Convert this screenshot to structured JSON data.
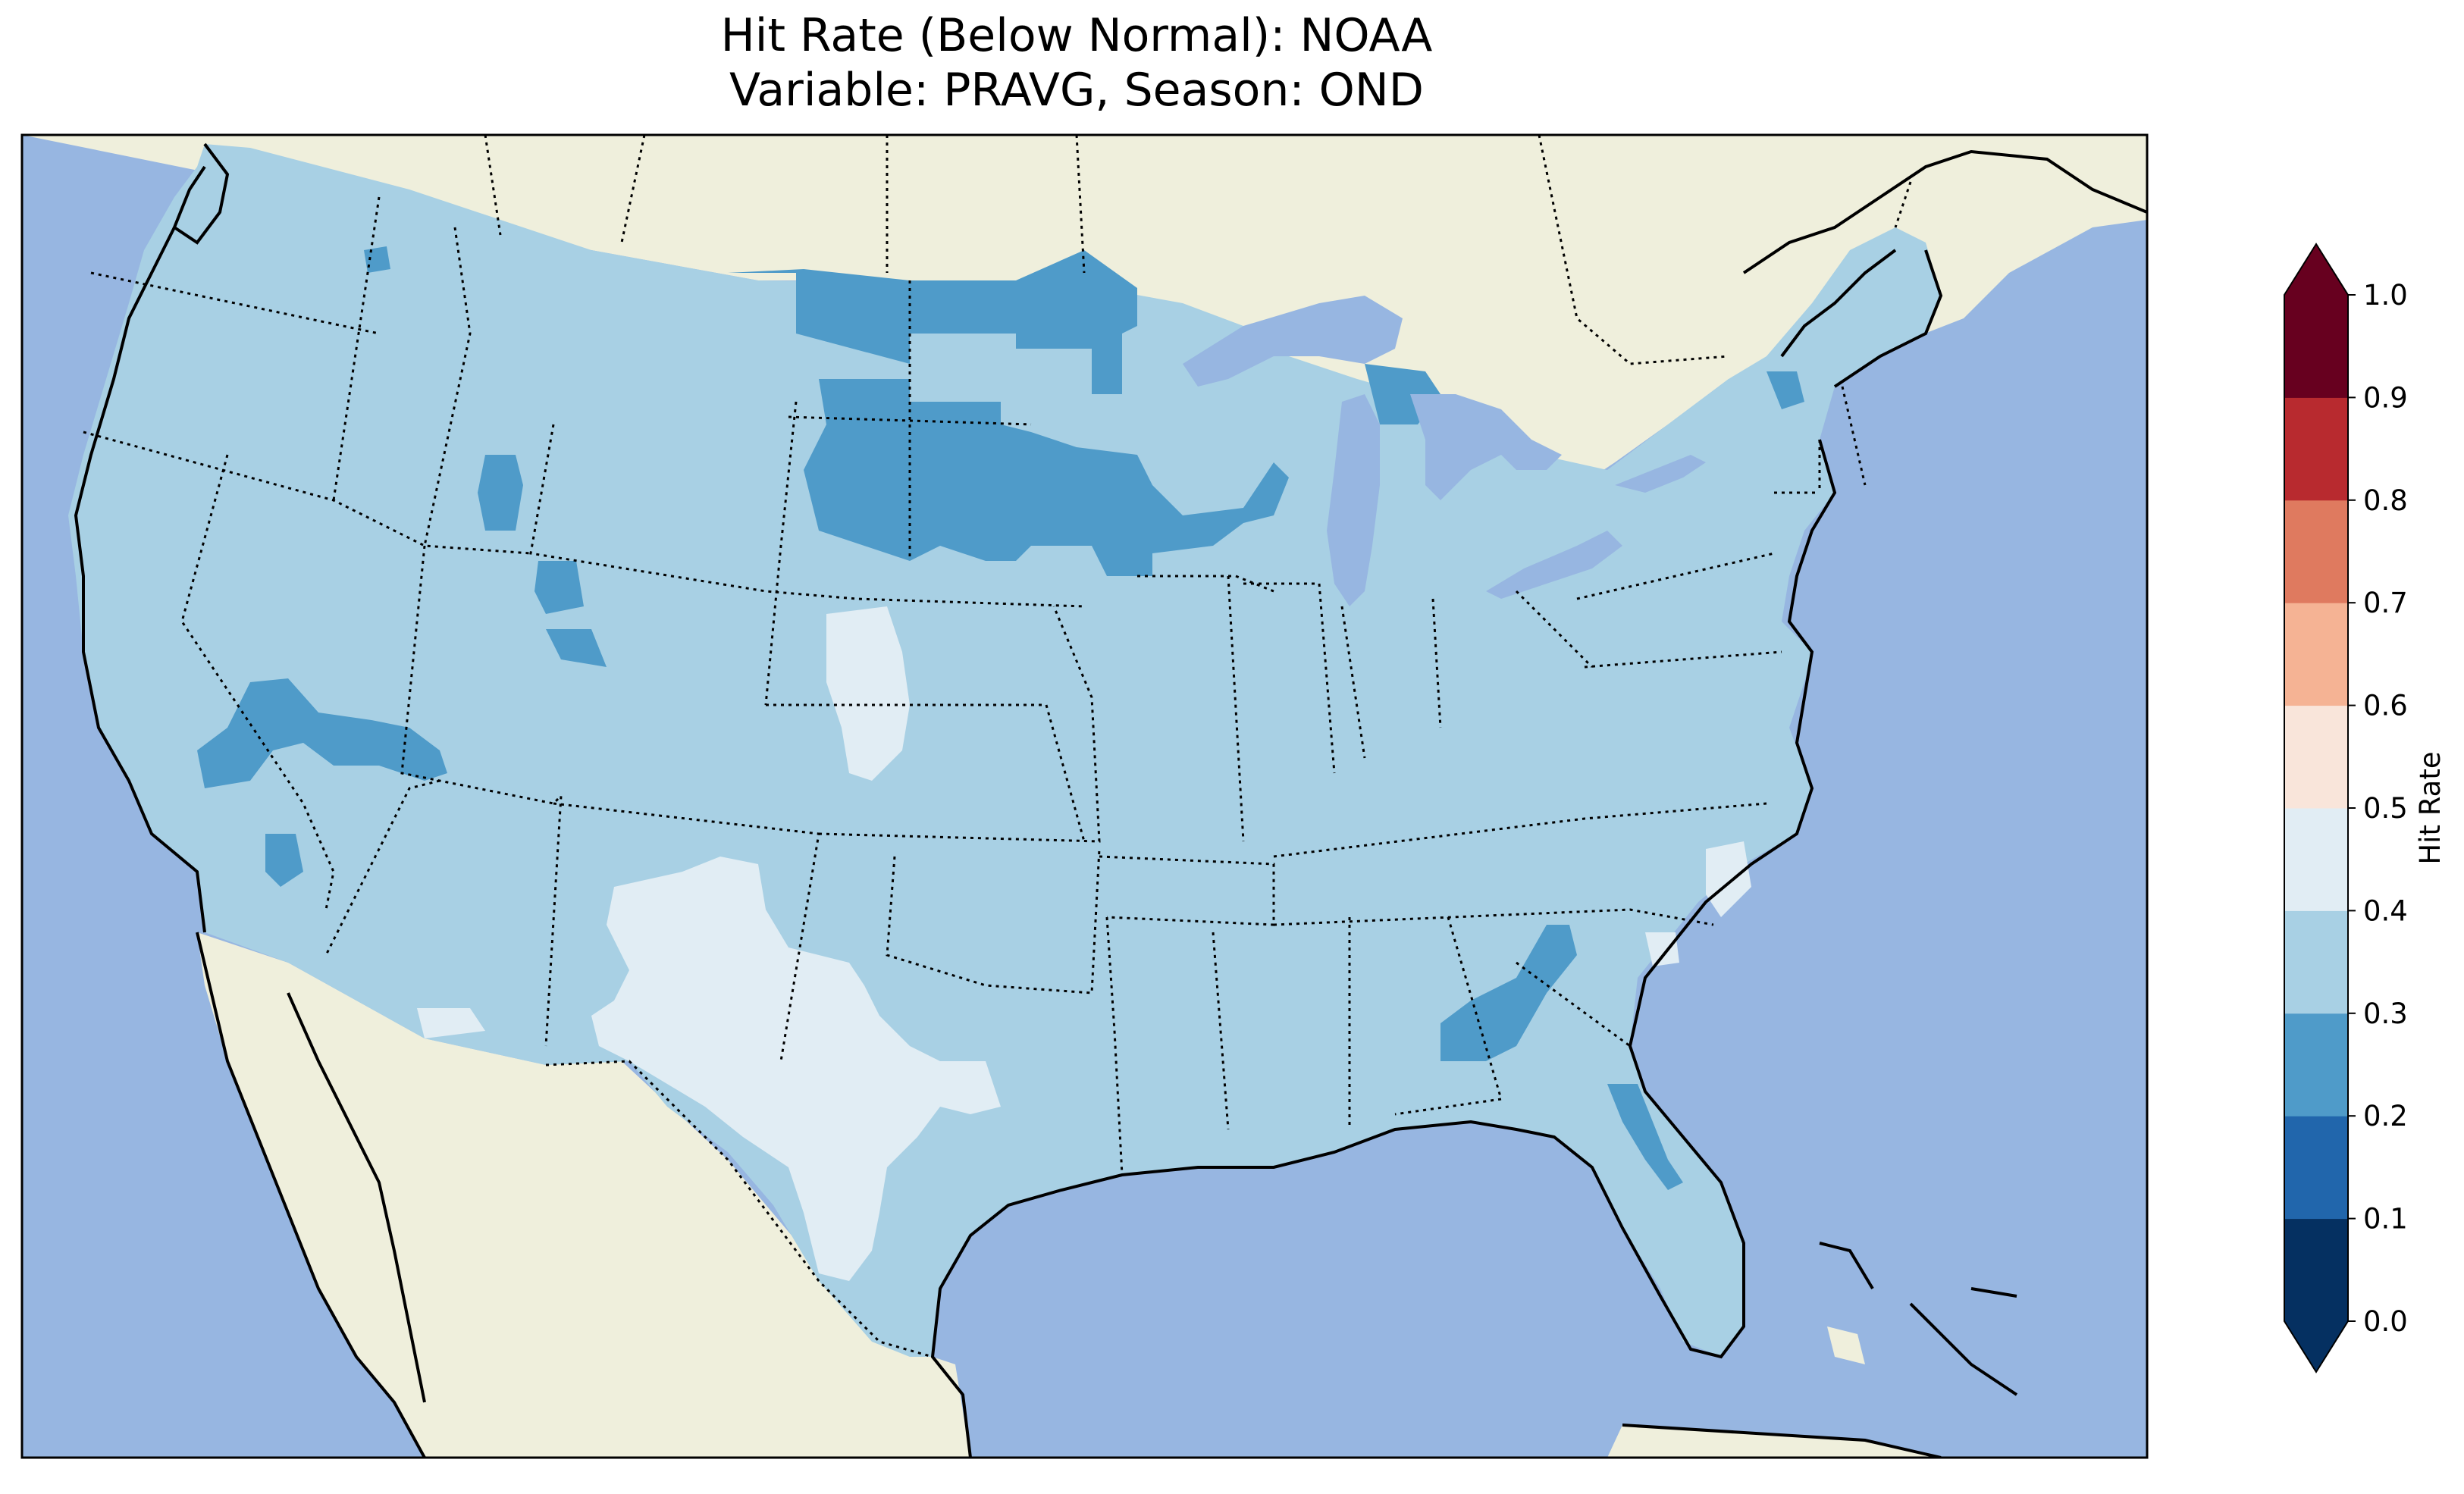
{
  "title": {
    "line1": "Hit Rate (Below Normal): NOAA",
    "line2": "Variable: PRAVG, Season: OND"
  },
  "colors": {
    "ocean": "#97b6e1",
    "land": "#efefdc",
    "lakes": "#97b6e1",
    "bin_0_1": "#053061",
    "bin_1_2": "#2166ac",
    "bin_2_3": "#4f9bc9",
    "bin_3_4": "#a8d0e4",
    "bin_4_5": "#e1edf4",
    "bin_5_6": "#f9e5da",
    "bin_6_7": "#f5b394",
    "bin_7_8": "#df7a5f",
    "bin_8_9": "#b82a2f",
    "bin_9_10": "#67001f"
  },
  "colorbar": {
    "label": "Hit Rate",
    "ticks": [
      "0.0",
      "0.1",
      "0.2",
      "0.3",
      "0.4",
      "0.5",
      "0.6",
      "0.7",
      "0.8",
      "0.9",
      "1.0"
    ],
    "extend": "both"
  },
  "map_data": {
    "region": "Contiguous United States",
    "dominant_bin": "0.3-0.4",
    "areas_0_2_to_0_3": [
      "northern Great Plains",
      "central Nevada",
      "northern Georgia",
      "Florida east coast",
      "eastern Minnesota"
    ],
    "areas_0_4_to_0_5": [
      "New Mexico",
      "western Texas",
      "eastern Colorado",
      "coastal North Carolina"
    ]
  }
}
